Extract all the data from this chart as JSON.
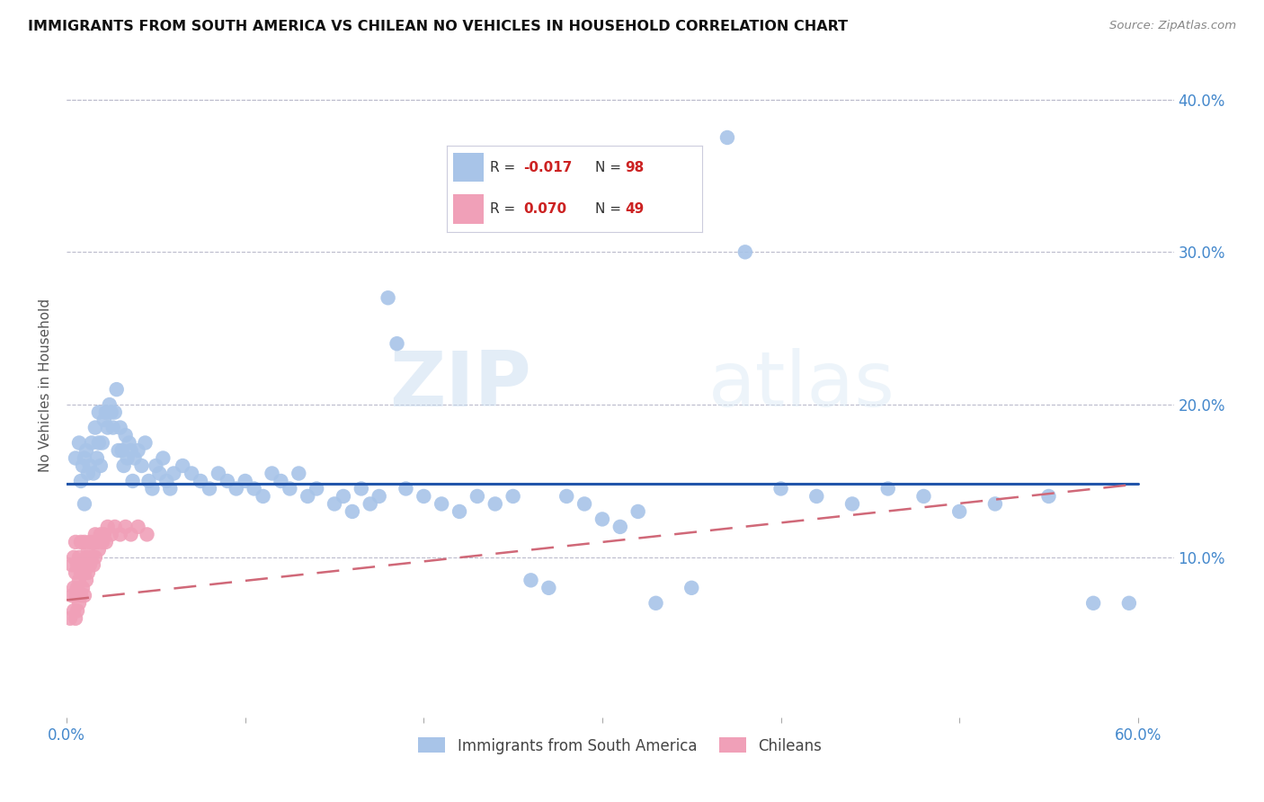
{
  "title": "IMMIGRANTS FROM SOUTH AMERICA VS CHILEAN NO VEHICLES IN HOUSEHOLD CORRELATION CHART",
  "source": "Source: ZipAtlas.com",
  "ylabel": "No Vehicles in Household",
  "ytick_labels": [
    "",
    "10.0%",
    "20.0%",
    "30.0%",
    "40.0%"
  ],
  "yticks": [
    0.0,
    0.1,
    0.2,
    0.3,
    0.4
  ],
  "legend_blue_r": "-0.017",
  "legend_blue_n": "98",
  "legend_pink_r": "0.070",
  "legend_pink_n": "49",
  "legend_label_blue": "Immigrants from South America",
  "legend_label_pink": "Chileans",
  "blue_color": "#A8C4E8",
  "pink_color": "#F0A0B8",
  "line_blue_color": "#2255AA",
  "line_pink_color": "#D06878",
  "watermark_zip": "ZIP",
  "watermark_atlas": "atlas",
  "blue_scatter_x": [
    0.005,
    0.007,
    0.008,
    0.009,
    0.01,
    0.01,
    0.011,
    0.012,
    0.013,
    0.014,
    0.015,
    0.016,
    0.017,
    0.018,
    0.018,
    0.019,
    0.02,
    0.021,
    0.022,
    0.023,
    0.024,
    0.025,
    0.026,
    0.027,
    0.028,
    0.029,
    0.03,
    0.031,
    0.032,
    0.033,
    0.034,
    0.035,
    0.036,
    0.037,
    0.038,
    0.04,
    0.042,
    0.044,
    0.046,
    0.048,
    0.05,
    0.052,
    0.054,
    0.056,
    0.058,
    0.06,
    0.065,
    0.07,
    0.075,
    0.08,
    0.085,
    0.09,
    0.095,
    0.1,
    0.105,
    0.11,
    0.115,
    0.12,
    0.125,
    0.13,
    0.135,
    0.14,
    0.15,
    0.155,
    0.16,
    0.165,
    0.17,
    0.175,
    0.18,
    0.185,
    0.19,
    0.2,
    0.21,
    0.22,
    0.23,
    0.24,
    0.25,
    0.26,
    0.27,
    0.28,
    0.29,
    0.3,
    0.31,
    0.32,
    0.33,
    0.35,
    0.37,
    0.38,
    0.4,
    0.42,
    0.44,
    0.46,
    0.48,
    0.5,
    0.52,
    0.55,
    0.575,
    0.595
  ],
  "blue_scatter_y": [
    0.165,
    0.175,
    0.15,
    0.16,
    0.165,
    0.135,
    0.17,
    0.155,
    0.16,
    0.175,
    0.155,
    0.185,
    0.165,
    0.175,
    0.195,
    0.16,
    0.175,
    0.19,
    0.195,
    0.185,
    0.2,
    0.195,
    0.185,
    0.195,
    0.21,
    0.17,
    0.185,
    0.17,
    0.16,
    0.18,
    0.165,
    0.175,
    0.17,
    0.15,
    0.165,
    0.17,
    0.16,
    0.175,
    0.15,
    0.145,
    0.16,
    0.155,
    0.165,
    0.15,
    0.145,
    0.155,
    0.16,
    0.155,
    0.15,
    0.145,
    0.155,
    0.15,
    0.145,
    0.15,
    0.145,
    0.14,
    0.155,
    0.15,
    0.145,
    0.155,
    0.14,
    0.145,
    0.135,
    0.14,
    0.13,
    0.145,
    0.135,
    0.14,
    0.27,
    0.24,
    0.145,
    0.14,
    0.135,
    0.13,
    0.14,
    0.135,
    0.14,
    0.085,
    0.08,
    0.14,
    0.135,
    0.125,
    0.12,
    0.13,
    0.07,
    0.08,
    0.375,
    0.3,
    0.145,
    0.14,
    0.135,
    0.145,
    0.14,
    0.13,
    0.135,
    0.14,
    0.07,
    0.07
  ],
  "pink_scatter_x": [
    0.002,
    0.003,
    0.003,
    0.004,
    0.004,
    0.004,
    0.005,
    0.005,
    0.005,
    0.005,
    0.006,
    0.006,
    0.006,
    0.007,
    0.007,
    0.007,
    0.008,
    0.008,
    0.008,
    0.009,
    0.009,
    0.01,
    0.01,
    0.01,
    0.011,
    0.011,
    0.012,
    0.012,
    0.013,
    0.013,
    0.014,
    0.015,
    0.015,
    0.016,
    0.016,
    0.017,
    0.018,
    0.019,
    0.02,
    0.021,
    0.022,
    0.023,
    0.025,
    0.027,
    0.03,
    0.033,
    0.036,
    0.04,
    0.045
  ],
  "pink_scatter_y": [
    0.06,
    0.075,
    0.095,
    0.065,
    0.08,
    0.1,
    0.06,
    0.075,
    0.09,
    0.11,
    0.065,
    0.08,
    0.095,
    0.07,
    0.085,
    0.1,
    0.075,
    0.09,
    0.11,
    0.08,
    0.095,
    0.075,
    0.09,
    0.11,
    0.085,
    0.1,
    0.09,
    0.105,
    0.095,
    0.11,
    0.1,
    0.095,
    0.11,
    0.1,
    0.115,
    0.11,
    0.105,
    0.115,
    0.11,
    0.115,
    0.11,
    0.12,
    0.115,
    0.12,
    0.115,
    0.12,
    0.115,
    0.12,
    0.115
  ],
  "blue_line_x": [
    0.0,
    0.6
  ],
  "blue_line_y": [
    0.148,
    0.148
  ],
  "pink_line_x": [
    0.0,
    0.6
  ],
  "pink_line_y": [
    0.072,
    0.148
  ],
  "xlim": [
    0.0,
    0.62
  ],
  "ylim": [
    -0.005,
    0.43
  ]
}
